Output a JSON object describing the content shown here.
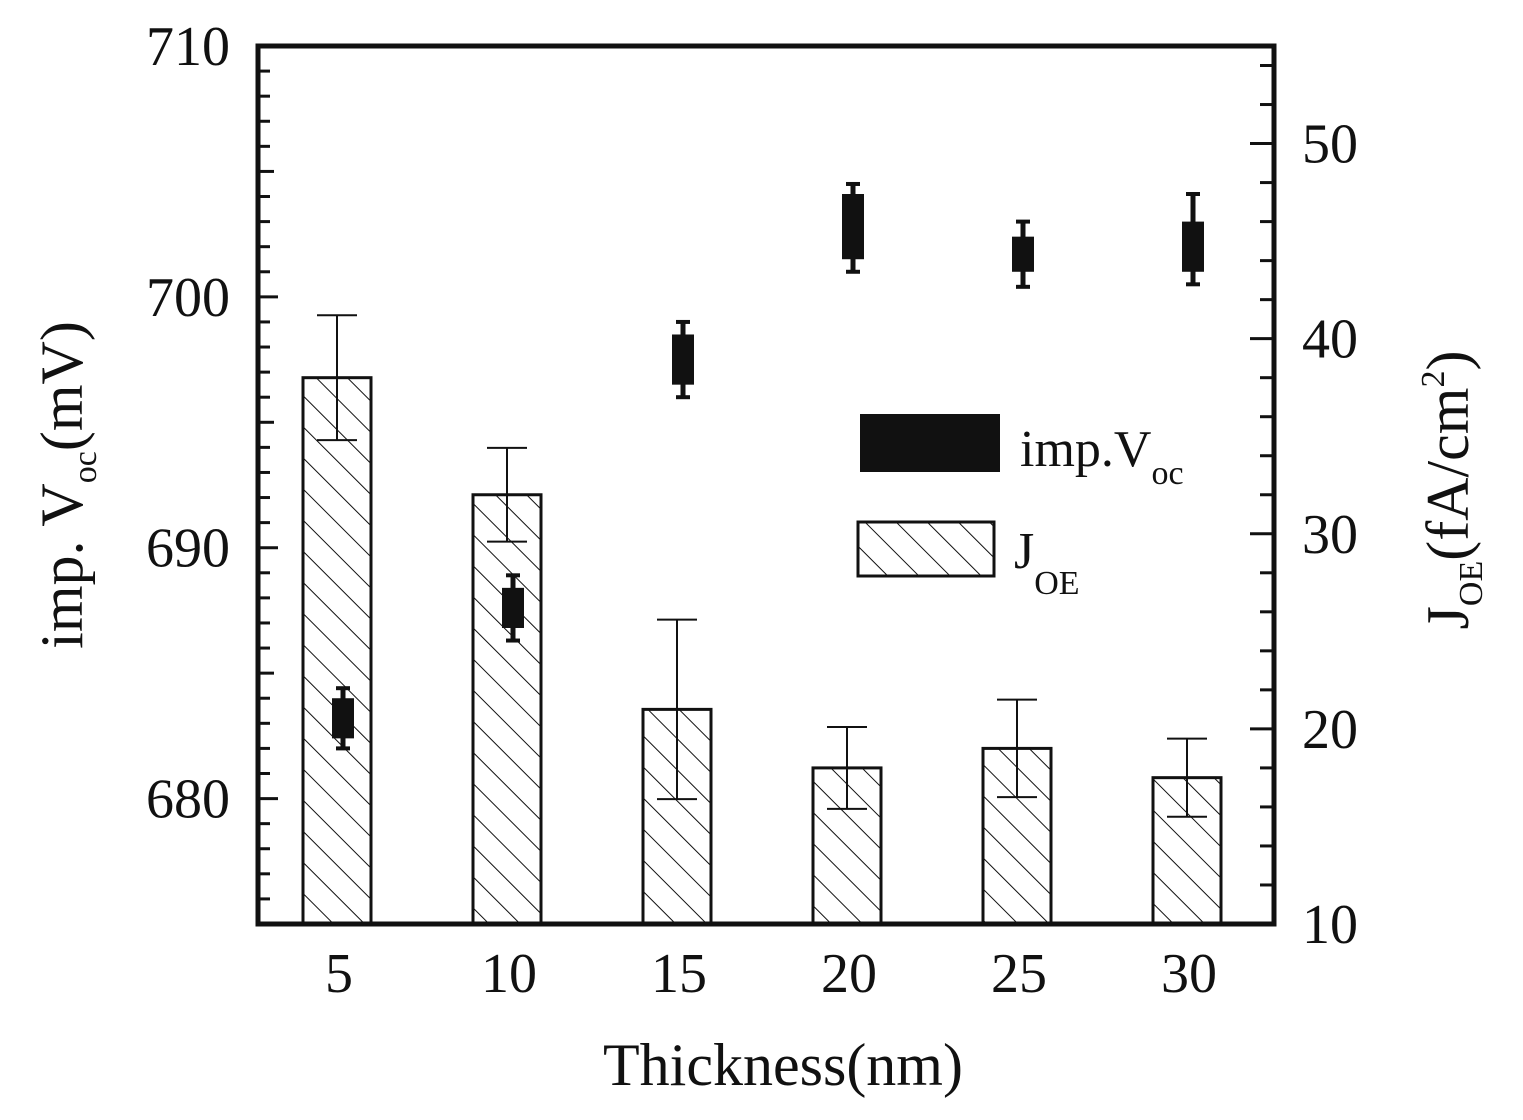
{
  "chart_data": {
    "type": "bar",
    "title": "",
    "xlabel": "Thickness(nm)",
    "categories": [
      "5",
      "10",
      "15",
      "20",
      "25",
      "30"
    ],
    "y_left": {
      "label_main": "imp. V",
      "label_sub": "oc",
      "label_unit": "(mV)",
      "ylim": [
        675,
        710
      ],
      "ticks": [
        680,
        690,
        700,
        710
      ],
      "tick_labels": [
        "680",
        "690",
        "700",
        "710"
      ]
    },
    "y_right": {
      "label_main": "J",
      "label_sub": "OE",
      "label_unit_pre": "(fA/cm",
      "label_sup": "2",
      "label_unit_post": ")",
      "ylim": [
        10,
        55
      ],
      "ticks": [
        10,
        20,
        30,
        40,
        50
      ],
      "tick_labels": [
        "10",
        "20",
        "30",
        "40",
        "50"
      ]
    },
    "series": [
      {
        "name": "J_OE",
        "legend_main": "J",
        "legend_sub": "OE",
        "style": "hatched-bar",
        "axis": "right",
        "values": [
          38.0,
          32.0,
          21.0,
          18.0,
          19.0,
          17.5
        ],
        "error": [
          3.2,
          2.4,
          4.6,
          2.1,
          2.5,
          2.0
        ]
      },
      {
        "name": "imp.V_oc",
        "legend_main": "imp.V",
        "legend_sub": "oc",
        "style": "filled-box",
        "axis": "left",
        "values": [
          683.2,
          687.6,
          697.5,
          702.8,
          701.7,
          702.0
        ],
        "box_half": [
          0.8,
          0.8,
          1.0,
          1.3,
          0.7,
          1.0
        ],
        "error_low": [
          1.2,
          1.3,
          1.5,
          1.8,
          1.3,
          1.5
        ],
        "error_high": [
          1.2,
          1.3,
          1.5,
          1.7,
          1.3,
          2.1
        ]
      }
    ],
    "legend_position": "center-right",
    "colors": {
      "ink": "#111111",
      "background": "#ffffff"
    }
  }
}
